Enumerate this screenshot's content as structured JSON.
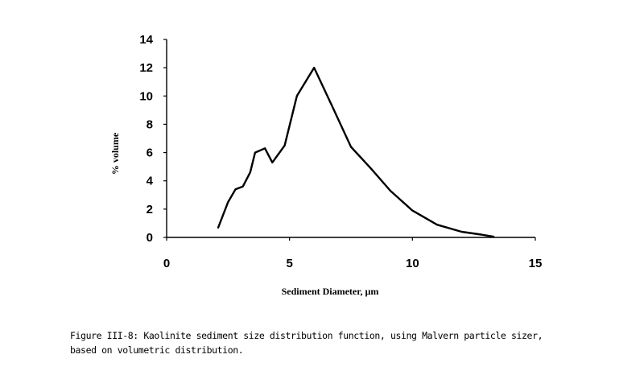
{
  "chart_data": {
    "type": "line",
    "xlabel": "Sediment Diameter, µm",
    "ylabel": "% volume",
    "xlim": [
      0,
      15
    ],
    "ylim": [
      0,
      14
    ],
    "x_ticks": [
      0,
      5,
      10,
      15
    ],
    "y_ticks": [
      0,
      2,
      4,
      6,
      8,
      10,
      12,
      14
    ],
    "grid": false,
    "series": [
      {
        "x": [
          2.1,
          2.5,
          2.8,
          3.1,
          3.4,
          3.6,
          4.0,
          4.3,
          4.8,
          5.3,
          6.0,
          6.7,
          7.5,
          8.3,
          9.1,
          10.0,
          11.0,
          12.0,
          12.8,
          13.3
        ],
        "y": [
          0.7,
          2.5,
          3.4,
          3.6,
          4.6,
          6.0,
          6.3,
          5.3,
          6.5,
          10.0,
          12.0,
          9.4,
          6.4,
          4.9,
          3.3,
          1.9,
          0.9,
          0.4,
          0.2,
          0.05
        ]
      }
    ]
  },
  "caption": {
    "line1": "Figure III-8: Kaolinite sediment size distribution function, using Malvern particle sizer,",
    "line2": "based on volumetric distribution."
  }
}
